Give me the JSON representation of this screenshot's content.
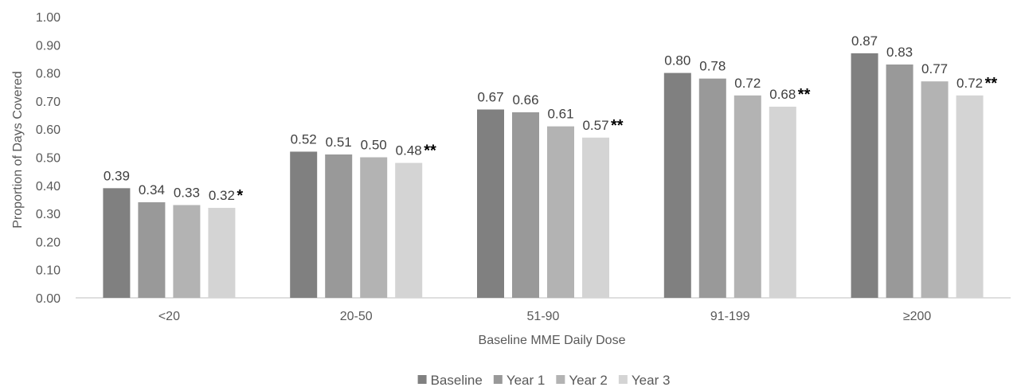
{
  "chart_data": {
    "type": "bar",
    "ylabel": "Proportion of Days Covered",
    "xlabel": "Baseline MME Daily Dose",
    "ylim": [
      0,
      1
    ],
    "yticks": [
      "0.00",
      "0.10",
      "0.20",
      "0.30",
      "0.40",
      "0.50",
      "0.60",
      "0.70",
      "0.80",
      "0.90",
      "1.00"
    ],
    "categories": [
      "<20",
      "20-50",
      "51-90",
      "91-199",
      "≥200"
    ],
    "series": [
      {
        "name": "Baseline",
        "color": "#808080",
        "values": [
          0.39,
          0.52,
          0.67,
          0.8,
          0.87
        ],
        "labels": [
          "0.39",
          "0.52",
          "0.67",
          "0.80",
          "0.87"
        ]
      },
      {
        "name": "Year 1",
        "color": "#999999",
        "values": [
          0.34,
          0.51,
          0.66,
          0.78,
          0.83
        ],
        "labels": [
          "0.34",
          "0.51",
          "0.66",
          "0.78",
          "0.83"
        ]
      },
      {
        "name": "Year 2",
        "color": "#b3b3b3",
        "values": [
          0.33,
          0.5,
          0.61,
          0.72,
          0.77
        ],
        "labels": [
          "0.33",
          "0.50",
          "0.61",
          "0.72",
          "0.77"
        ]
      },
      {
        "name": "Year 3",
        "color": "#d4d4d4",
        "values": [
          0.32,
          0.48,
          0.57,
          0.68,
          0.72
        ],
        "labels": [
          "0.32",
          "0.48",
          "0.57",
          "0.68",
          "0.72"
        ]
      }
    ],
    "annotations": [
      "*",
      "**",
      "**",
      "**",
      "**"
    ],
    "grid": false,
    "legend": "bottom-center"
  }
}
